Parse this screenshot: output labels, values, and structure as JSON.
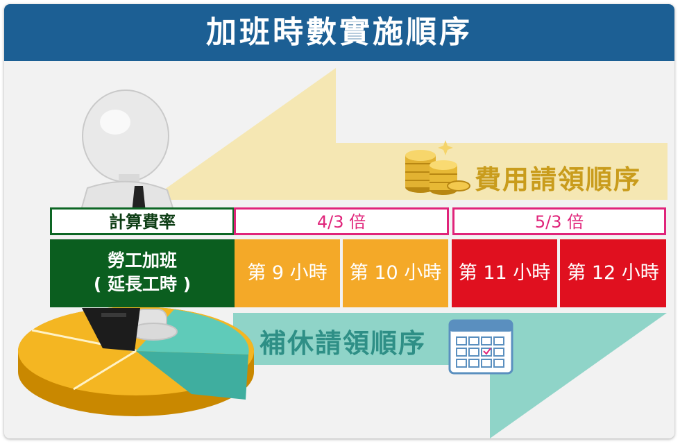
{
  "title": "加班時數實施順序",
  "fee_order_label": "費用請領順序",
  "comp_order_label": "補休請領順序",
  "table": {
    "rate_header": "計算費率",
    "rate_groups": [
      "4/3 倍",
      "5/3 倍"
    ],
    "row_label_line1": "勞工加班",
    "row_label_line2": "( 延長工時 )",
    "hours": [
      "第 9 小時",
      "第 10 小時",
      "第 11 小時",
      "第 12 小時"
    ]
  },
  "colors": {
    "header_bg": "#1c5f94",
    "fee_arrow": "#f5e7b3",
    "comp_arrow": "#8fd4c8",
    "rate_4_3": "#f4a928",
    "rate_5_3": "#e0101f",
    "labor_cell": "#0b5e1f"
  },
  "icons": [
    "person-figure-icon",
    "briefcase-icon",
    "pie-chart-icon",
    "coin-stack-icon",
    "calendar-icon"
  ]
}
